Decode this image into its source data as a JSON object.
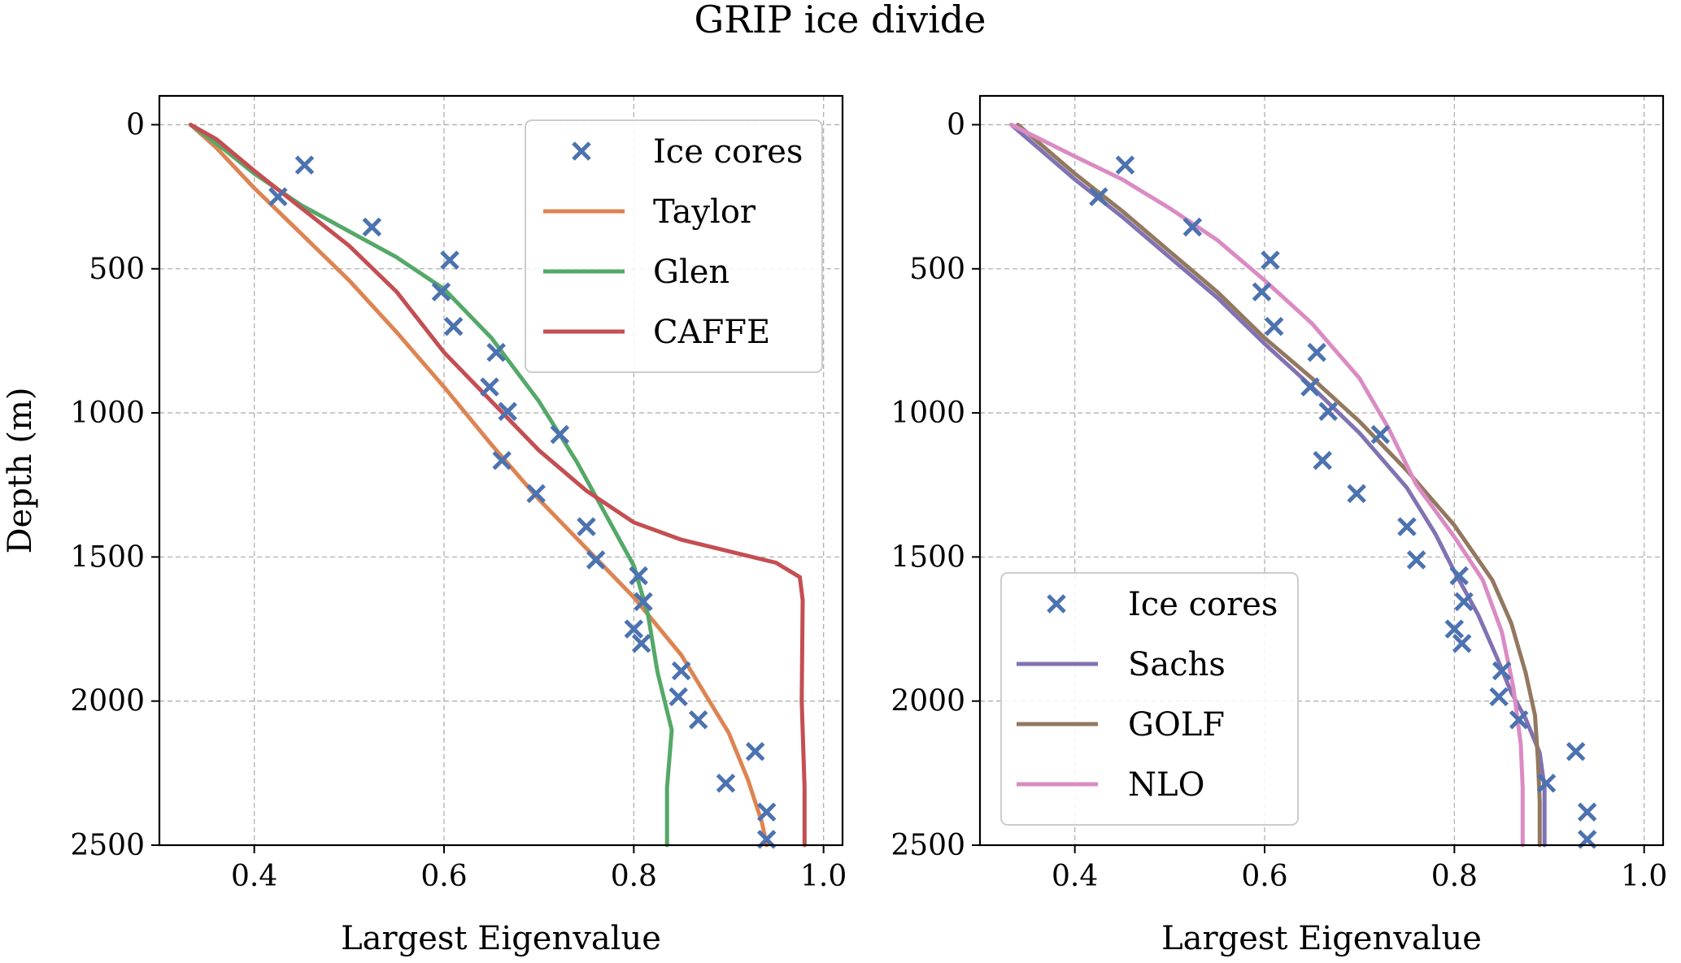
{
  "title": "GRIP ice divide",
  "colors": {
    "ice_cores": "#4c72b0",
    "taylor": "#dd8452",
    "glen": "#55a868",
    "caffe": "#c44e52",
    "sachs": "#8172b3",
    "golf": "#937860",
    "nlo": "#da8bc3"
  },
  "chart_data": [
    {
      "type": "line",
      "title": "",
      "xlabel": "Largest Eigenvalue",
      "ylabel": "Depth (m)",
      "xlim": [
        0.3,
        1.02
      ],
      "ylim": [
        2500,
        -100
      ],
      "y_inverted": true,
      "xticks": [
        0.4,
        0.6,
        0.8,
        1.0
      ],
      "xtick_labels": [
        "0.4",
        "0.6",
        "0.8",
        "1.0"
      ],
      "yticks": [
        0,
        500,
        1000,
        1500,
        2000,
        2500
      ],
      "ytick_labels": [
        "0",
        "500",
        "1000",
        "1500",
        "2000",
        "2500"
      ],
      "grid": true,
      "legend_position": "top-right",
      "series": [
        {
          "name": "Ice cores",
          "kind": "scatter",
          "marker": "x",
          "color_key": "ice_cores",
          "points": [
            [
              0.453,
              140
            ],
            [
              0.425,
              250
            ],
            [
              0.524,
              355
            ],
            [
              0.606,
              470
            ],
            [
              0.597,
              580
            ],
            [
              0.61,
              700
            ],
            [
              0.655,
              790
            ],
            [
              0.648,
              910
            ],
            [
              0.667,
              995
            ],
            [
              0.722,
              1075
            ],
            [
              0.661,
              1165
            ],
            [
              0.697,
              1280
            ],
            [
              0.75,
              1395
            ],
            [
              0.76,
              1510
            ],
            [
              0.805,
              1565
            ],
            [
              0.81,
              1655
            ],
            [
              0.8,
              1750
            ],
            [
              0.808,
              1800
            ],
            [
              0.85,
              1895
            ],
            [
              0.847,
              1985
            ],
            [
              0.868,
              2065
            ],
            [
              0.928,
              2175
            ],
            [
              0.897,
              2285
            ],
            [
              0.94,
              2385
            ],
            [
              0.94,
              2480
            ]
          ]
        },
        {
          "name": "Taylor",
          "kind": "line",
          "color_key": "taylor",
          "points": [
            [
              0.333,
              0
            ],
            [
              0.36,
              80
            ],
            [
              0.4,
              220
            ],
            [
              0.45,
              380
            ],
            [
              0.5,
              540
            ],
            [
              0.55,
              720
            ],
            [
              0.6,
              910
            ],
            [
              0.65,
              1110
            ],
            [
              0.7,
              1300
            ],
            [
              0.75,
              1470
            ],
            [
              0.8,
              1640
            ],
            [
              0.85,
              1840
            ],
            [
              0.9,
              2110
            ],
            [
              0.92,
              2270
            ],
            [
              0.935,
              2420
            ],
            [
              0.94,
              2500
            ]
          ]
        },
        {
          "name": "Glen",
          "kind": "line",
          "color_key": "glen",
          "points": [
            [
              0.333,
              0
            ],
            [
              0.37,
              90
            ],
            [
              0.4,
              170
            ],
            [
              0.45,
              280
            ],
            [
              0.5,
              370
            ],
            [
              0.55,
              460
            ],
            [
              0.6,
              570
            ],
            [
              0.65,
              740
            ],
            [
              0.7,
              960
            ],
            [
              0.74,
              1170
            ],
            [
              0.77,
              1350
            ],
            [
              0.8,
              1530
            ],
            [
              0.815,
              1700
            ],
            [
              0.825,
              1900
            ],
            [
              0.84,
              2100
            ],
            [
              0.835,
              2300
            ],
            [
              0.835,
              2500
            ]
          ]
        },
        {
          "name": "CAFFE",
          "kind": "line",
          "color_key": "caffe",
          "points": [
            [
              0.333,
              0
            ],
            [
              0.36,
              50
            ],
            [
              0.4,
              160
            ],
            [
              0.45,
              290
            ],
            [
              0.5,
              420
            ],
            [
              0.55,
              580
            ],
            [
              0.6,
              790
            ],
            [
              0.65,
              960
            ],
            [
              0.7,
              1130
            ],
            [
              0.75,
              1270
            ],
            [
              0.8,
              1380
            ],
            [
              0.85,
              1440
            ],
            [
              0.9,
              1480
            ],
            [
              0.95,
              1520
            ],
            [
              0.975,
              1570
            ],
            [
              0.978,
              1650
            ],
            [
              0.977,
              2000
            ],
            [
              0.98,
              2300
            ],
            [
              0.98,
              2500
            ]
          ]
        }
      ]
    },
    {
      "type": "line",
      "title": "",
      "xlabel": "Largest Eigenvalue",
      "ylabel": "",
      "xlim": [
        0.3,
        1.02
      ],
      "ylim": [
        2500,
        -100
      ],
      "y_inverted": true,
      "xticks": [
        0.4,
        0.6,
        0.8,
        1.0
      ],
      "xtick_labels": [
        "0.4",
        "0.6",
        "0.8",
        "1.0"
      ],
      "yticks": [
        0,
        500,
        1000,
        1500,
        2000,
        2500
      ],
      "ytick_labels": [
        "0",
        "500",
        "1000",
        "1500",
        "2000",
        "2500"
      ],
      "grid": true,
      "legend_position": "bottom-left",
      "series": [
        {
          "name": "Ice cores",
          "kind": "scatter",
          "marker": "x",
          "color_key": "ice_cores",
          "points": [
            [
              0.453,
              140
            ],
            [
              0.425,
              250
            ],
            [
              0.524,
              355
            ],
            [
              0.606,
              470
            ],
            [
              0.597,
              580
            ],
            [
              0.61,
              700
            ],
            [
              0.655,
              790
            ],
            [
              0.648,
              910
            ],
            [
              0.667,
              995
            ],
            [
              0.722,
              1075
            ],
            [
              0.661,
              1165
            ],
            [
              0.697,
              1280
            ],
            [
              0.75,
              1395
            ],
            [
              0.76,
              1510
            ],
            [
              0.805,
              1565
            ],
            [
              0.81,
              1655
            ],
            [
              0.8,
              1750
            ],
            [
              0.808,
              1800
            ],
            [
              0.85,
              1895
            ],
            [
              0.847,
              1985
            ],
            [
              0.868,
              2065
            ],
            [
              0.928,
              2175
            ],
            [
              0.897,
              2285
            ],
            [
              0.94,
              2385
            ],
            [
              0.94,
              2480
            ]
          ]
        },
        {
          "name": "Sachs",
          "kind": "line",
          "color_key": "sachs",
          "points": [
            [
              0.333,
              0
            ],
            [
              0.4,
              190
            ],
            [
              0.45,
              320
            ],
            [
              0.5,
              460
            ],
            [
              0.55,
              600
            ],
            [
              0.6,
              760
            ],
            [
              0.65,
              910
            ],
            [
              0.7,
              1070
            ],
            [
              0.75,
              1260
            ],
            [
              0.78,
              1420
            ],
            [
              0.8,
              1550
            ],
            [
              0.825,
              1700
            ],
            [
              0.845,
              1850
            ],
            [
              0.86,
              1970
            ],
            [
              0.875,
              2060
            ],
            [
              0.89,
              2180
            ],
            [
              0.895,
              2300
            ],
            [
              0.895,
              2500
            ]
          ]
        },
        {
          "name": "GOLF",
          "kind": "line",
          "color_key": "golf",
          "points": [
            [
              0.34,
              0
            ],
            [
              0.4,
              170
            ],
            [
              0.45,
              300
            ],
            [
              0.5,
              440
            ],
            [
              0.55,
              580
            ],
            [
              0.6,
              740
            ],
            [
              0.65,
              880
            ],
            [
              0.7,
              1030
            ],
            [
              0.75,
              1200
            ],
            [
              0.8,
              1390
            ],
            [
              0.84,
              1580
            ],
            [
              0.86,
              1730
            ],
            [
              0.875,
              1900
            ],
            [
              0.885,
              2050
            ],
            [
              0.888,
              2200
            ],
            [
              0.89,
              2350
            ],
            [
              0.89,
              2500
            ]
          ]
        },
        {
          "name": "NLO",
          "kind": "line",
          "color_key": "nlo",
          "points": [
            [
              0.333,
              0
            ],
            [
              0.4,
              110
            ],
            [
              0.45,
              190
            ],
            [
              0.5,
              290
            ],
            [
              0.55,
              400
            ],
            [
              0.6,
              540
            ],
            [
              0.65,
              690
            ],
            [
              0.7,
              880
            ],
            [
              0.73,
              1050
            ],
            [
              0.76,
              1250
            ],
            [
              0.8,
              1430
            ],
            [
              0.83,
              1580
            ],
            [
              0.85,
              1760
            ],
            [
              0.862,
              1950
            ],
            [
              0.87,
              2150
            ],
            [
              0.872,
              2300
            ],
            [
              0.872,
              2500
            ]
          ]
        }
      ]
    }
  ]
}
